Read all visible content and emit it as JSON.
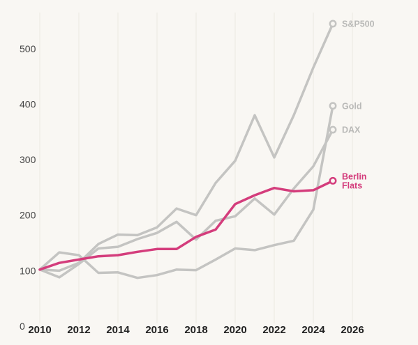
{
  "chart_data": {
    "type": "line",
    "title": "",
    "xlabel": "",
    "ylabel": "",
    "xlim": [
      2010,
      2026
    ],
    "ylim": [
      0,
      550
    ],
    "x_ticks": [
      2010,
      2012,
      2014,
      2016,
      2018,
      2020,
      2022,
      2024,
      2026
    ],
    "y_ticks": [
      0,
      100,
      200,
      300,
      400,
      500
    ],
    "x_tick_labels": [
      "2010",
      "2012",
      "2014",
      "2016",
      "2018",
      "2020",
      "2022",
      "2024",
      "2026"
    ],
    "y_tick_labels": [
      "0",
      "100",
      "200",
      "300",
      "400",
      "500"
    ],
    "grid": "vertical",
    "legend": "labels at line ends",
    "x": [
      2010,
      2011,
      2012,
      2013,
      2014,
      2015,
      2016,
      2017,
      2018,
      2019,
      2020,
      2021,
      2022,
      2023,
      2024,
      2025
    ],
    "series": [
      {
        "name": "S&P500",
        "color": "#c4c4c2",
        "values": [
          102,
          100,
          114,
          148,
          165,
          164,
          178,
          212,
          200,
          258,
          298,
          380,
          304,
          380,
          466,
          545
        ]
      },
      {
        "name": "Gold",
        "color": "#c4c4c2",
        "values": [
          102,
          133,
          128,
          96,
          97,
          87,
          92,
          102,
          101,
          120,
          140,
          137,
          146,
          154,
          210,
          397
        ]
      },
      {
        "name": "DAX",
        "color": "#c4c4c2",
        "values": [
          102,
          88,
          112,
          140,
          143,
          157,
          168,
          188,
          156,
          190,
          198,
          230,
          201,
          248,
          288,
          354
        ]
      },
      {
        "name": "Berlin Flats",
        "color": "#d43d7c",
        "values": [
          102,
          114,
          120,
          126,
          128,
          134,
          139,
          139,
          161,
          174,
          220,
          236,
          249,
          243,
          245,
          262
        ]
      }
    ],
    "end_labels": [
      {
        "series": "S&P500",
        "lines": [
          "S&P500"
        ]
      },
      {
        "series": "Gold",
        "lines": [
          "Gold"
        ]
      },
      {
        "series": "DAX",
        "lines": [
          "DAX"
        ]
      },
      {
        "series": "Berlin Flats",
        "lines": [
          "Berlin",
          "Flats"
        ]
      }
    ]
  }
}
